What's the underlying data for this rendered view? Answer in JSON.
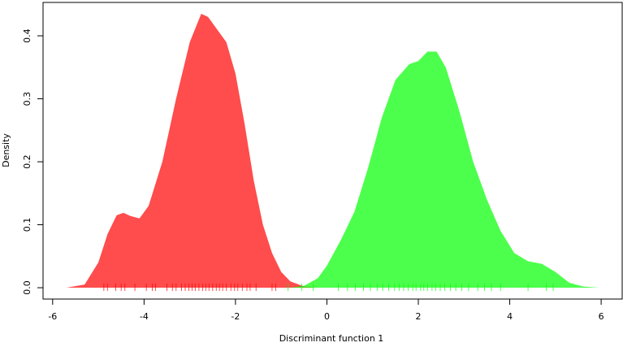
{
  "chart_data": {
    "type": "density",
    "xlabel": "Discriminant function 1",
    "ylabel": "Density",
    "xlim": [
      -6.21,
      6.46
    ],
    "ylim": [
      -0.018,
      0.453
    ],
    "xticks": [
      -6,
      -4,
      -2,
      0,
      2,
      4,
      6
    ],
    "yticks": [
      {
        "value": 0,
        "label": "0.0"
      },
      0.1,
      0.2,
      0.3,
      0.4
    ],
    "series": [
      {
        "color": "#ff0000b3",
        "x": [
          -5.7,
          -5.3,
          -5.0,
          -4.8,
          -4.6,
          -4.45,
          -4.3,
          -4.1,
          -3.9,
          -3.6,
          -3.3,
          -3.0,
          -2.75,
          -2.6,
          -2.4,
          -2.2,
          -2.0,
          -1.8,
          -1.6,
          -1.4,
          -1.2,
          -1.0,
          -0.8,
          -0.5,
          -0.2
        ],
        "values": [
          0,
          0.005,
          0.04,
          0.085,
          0.115,
          0.119,
          0.114,
          0.11,
          0.13,
          0.2,
          0.3,
          0.39,
          0.435,
          0.43,
          0.41,
          0.39,
          0.34,
          0.26,
          0.17,
          0.1,
          0.055,
          0.025,
          0.01,
          0.002,
          0
        ],
        "rug": [
          -4.88,
          -4.8,
          -4.62,
          -4.5,
          -4.42,
          -4.2,
          -3.95,
          -3.82,
          -3.75,
          -3.5,
          -3.38,
          -3.3,
          -3.18,
          -3.1,
          -3.02,
          -2.95,
          -2.88,
          -2.8,
          -2.72,
          -2.65,
          -2.58,
          -2.5,
          -2.42,
          -2.35,
          -2.28,
          -2.2,
          -2.1,
          -2.02,
          -1.95,
          -1.85,
          -1.75,
          -1.68,
          -1.55,
          -1.2,
          -1.12
        ]
      },
      {
        "color": "#00ff00b3",
        "x": [
          -0.8,
          -0.5,
          -0.2,
          0,
          0.3,
          0.6,
          0.9,
          1.2,
          1.5,
          1.8,
          2.0,
          2.2,
          2.4,
          2.6,
          2.9,
          3.2,
          3.5,
          3.8,
          4.1,
          4.4,
          4.7,
          5.0,
          5.3,
          5.6,
          5.95
        ],
        "values": [
          0,
          0.003,
          0.015,
          0.035,
          0.075,
          0.12,
          0.19,
          0.27,
          0.33,
          0.355,
          0.36,
          0.375,
          0.375,
          0.35,
          0.28,
          0.2,
          0.14,
          0.09,
          0.055,
          0.042,
          0.038,
          0.025,
          0.008,
          0.002,
          0
        ],
        "rug": [
          -0.85,
          -0.55,
          -0.3,
          0.25,
          0.45,
          0.62,
          0.8,
          0.95,
          1.1,
          1.22,
          1.35,
          1.48,
          1.58,
          1.68,
          1.78,
          1.88,
          1.95,
          2.05,
          2.12,
          2.2,
          2.3,
          2.38,
          2.48,
          2.58,
          2.7,
          2.82,
          2.95,
          3.1,
          3.3,
          3.45,
          3.6,
          3.8,
          4.4,
          4.8,
          4.95
        ]
      }
    ]
  }
}
